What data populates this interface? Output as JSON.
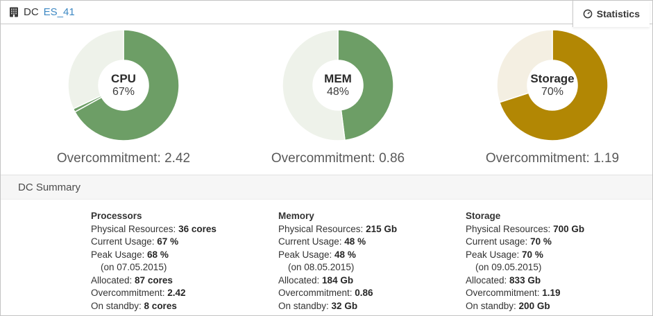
{
  "header": {
    "entity_label": "DC",
    "entity_name": "ES_41",
    "tab_label": "Statistics"
  },
  "colors": {
    "link_blue": "#3d88c3",
    "green_used": "#6d9e66",
    "green_free": "#eef2ea",
    "gold_used": "#b28704",
    "gold_free": "#f4efe2"
  },
  "chart_data": [
    {
      "type": "pie",
      "title": "CPU",
      "center_label": "CPU",
      "center_value": "67%",
      "caption": "Overcommitment: 2.42",
      "slices": [
        {
          "name": "used",
          "value": 67,
          "color": "#6d9e66"
        },
        {
          "name": "peak-marker",
          "value": 1,
          "color": "#6d9e66"
        },
        {
          "name": "free",
          "value": 32,
          "color": "#eef2ea"
        }
      ]
    },
    {
      "type": "pie",
      "title": "MEM",
      "center_label": "MEM",
      "center_value": "48%",
      "caption": "Overcommitment: 0.86",
      "slices": [
        {
          "name": "used",
          "value": 48,
          "color": "#6d9e66"
        },
        {
          "name": "free",
          "value": 52,
          "color": "#eef2ea"
        }
      ]
    },
    {
      "type": "pie",
      "title": "Storage",
      "center_label": "Storage",
      "center_value": "70%",
      "caption": "Overcommitment: 1.19",
      "slices": [
        {
          "name": "used",
          "value": 70,
          "color": "#b28704"
        },
        {
          "name": "free",
          "value": 30,
          "color": "#f4efe2"
        }
      ]
    }
  ],
  "summary": {
    "title": "DC Summary",
    "columns": [
      {
        "title": "Processors",
        "rows": [
          {
            "label": "Physical Resources: ",
            "value": "36 cores"
          },
          {
            "label": "Current Usage: ",
            "value": "67 %"
          },
          {
            "label": "Peak Usage: ",
            "value": "68 %"
          },
          {
            "label": "(on 07.05.2015)",
            "value": "",
            "indent": true
          },
          {
            "label": "Allocated: ",
            "value": "87 cores"
          },
          {
            "label": "Overcommitment: ",
            "value": "2.42"
          },
          {
            "label": "On standby: ",
            "value": "8 cores"
          }
        ]
      },
      {
        "title": "Memory",
        "rows": [
          {
            "label": "Physical Resources: ",
            "value": "215 Gb"
          },
          {
            "label": "Current Usage: ",
            "value": "48 %"
          },
          {
            "label": "Peak Usage: ",
            "value": "48 %"
          },
          {
            "label": "(on 08.05.2015)",
            "value": "",
            "indent": true
          },
          {
            "label": "Allocated: ",
            "value": "184 Gb"
          },
          {
            "label": "Overcommitment: ",
            "value": "0.86"
          },
          {
            "label": "On standby: ",
            "value": "32 Gb"
          }
        ]
      },
      {
        "title": "Storage",
        "rows": [
          {
            "label": "Physical Resources: ",
            "value": "700 Gb"
          },
          {
            "label": "Current usage: ",
            "value": "70 %"
          },
          {
            "label": "Peak Usage: ",
            "value": "70 %"
          },
          {
            "label": "(on 09.05.2015)",
            "value": "",
            "indent": true
          },
          {
            "label": "Allocated: ",
            "value": "833 Gb"
          },
          {
            "label": "Overcommitment: ",
            "value": "1.19"
          },
          {
            "label": "On standby: ",
            "value": "200 Gb"
          }
        ]
      }
    ]
  }
}
